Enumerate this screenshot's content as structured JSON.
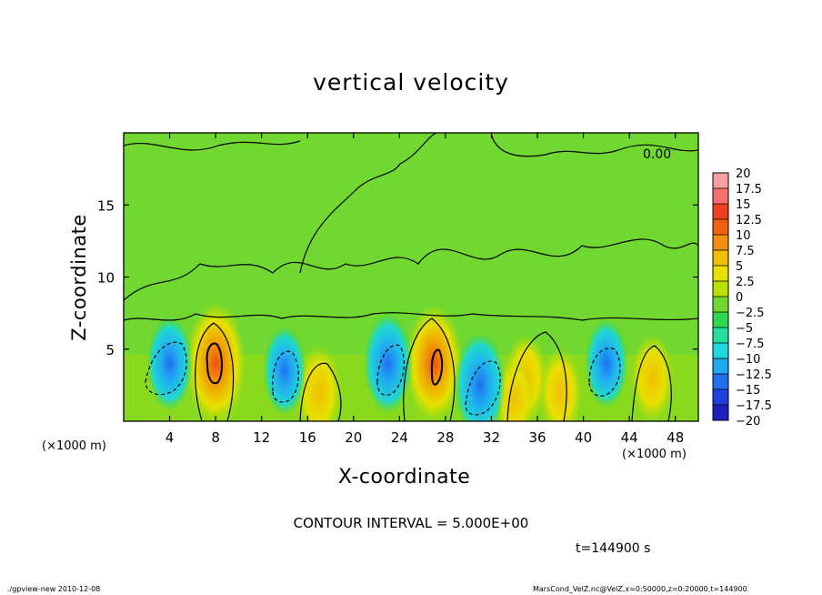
{
  "title": "vertical velocity",
  "xlabel": "X-coordinate",
  "ylabel": "Z-coordinate",
  "x_unit_left": "(×1000 m)",
  "x_unit_right": "(×1000 m)",
  "contour_interval_text": "CONTOUR INTERVAL = 5.000E+00",
  "time_text": "t=144900 s",
  "footer_left": "./gpview-new  2010-12-08",
  "footer_right": "MarsCond_VelZ.nc@VelZ,x=0:50000,z=0:20000,t=144900",
  "contour_label": "0.00",
  "chart_data": {
    "type": "heatmap",
    "title": "vertical velocity",
    "xlabel": "X-coordinate",
    "ylabel": "Z-coordinate",
    "xlim": [
      0,
      50
    ],
    "ylim": [
      0,
      20
    ],
    "x_ticks": [
      4,
      8,
      12,
      16,
      20,
      24,
      28,
      32,
      36,
      40,
      44,
      48
    ],
    "y_ticks": [
      5,
      10,
      15
    ],
    "colorbar": {
      "levels": [
        "20",
        "17.5",
        "15",
        "12.5",
        "10",
        "7.5",
        "5",
        "2.5",
        "0",
        "−2.5",
        "−5",
        "−7.5",
        "−10",
        "−12.5",
        "−15",
        "−17.5",
        "−20"
      ],
      "colors": [
        "#f4a0a0",
        "#f47070",
        "#f04020",
        "#f06010",
        "#f09010",
        "#f0c000",
        "#e8e000",
        "#b8e000",
        "#70d830",
        "#30d850",
        "#20e0a0",
        "#20d8e0",
        "#20a8f0",
        "#2070f0",
        "#2040e0",
        "#2020c0",
        "#6010b0"
      ]
    },
    "features": [
      {
        "kind": "updraft",
        "x": 8,
        "z": 4,
        "value": 12
      },
      {
        "kind": "updraft",
        "x": 27,
        "z": 4,
        "value": 11
      },
      {
        "kind": "updraft",
        "x": 17,
        "z": 2,
        "value": 7
      },
      {
        "kind": "updraft",
        "x": 35,
        "z": 3,
        "value": 6
      },
      {
        "kind": "updraft",
        "x": 38,
        "z": 2,
        "value": 6
      },
      {
        "kind": "updraft",
        "x": 46,
        "z": 3,
        "value": 6
      },
      {
        "kind": "updraft",
        "x": 34,
        "z": 1.5,
        "value": 5
      },
      {
        "kind": "downdraft",
        "x": 4,
        "z": 4,
        "value": -7
      },
      {
        "kind": "downdraft",
        "x": 14,
        "z": 3.5,
        "value": -6
      },
      {
        "kind": "downdraft",
        "x": 23,
        "z": 4,
        "value": -8
      },
      {
        "kind": "downdraft",
        "x": 31,
        "z": 2.5,
        "value": -9
      },
      {
        "kind": "downdraft",
        "x": 42,
        "z": 4,
        "value": -6
      }
    ]
  }
}
